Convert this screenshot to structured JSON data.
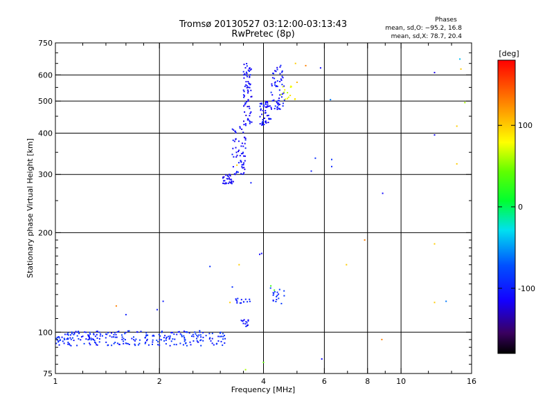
{
  "chart_data": {
    "type": "scatter",
    "title": "Tromsø 20130527 03:12:00-03:13:43",
    "subtitle": "RwPretec (8p)",
    "xlabel": "Frequency [MHz]",
    "ylabel": "Stationary phase Virtual Height [km]",
    "x_scale": "log",
    "y_scale": "log",
    "xlim": [
      1,
      16
    ],
    "ylim": [
      75,
      750
    ],
    "x_ticks": [
      1,
      2,
      4,
      6,
      8,
      10,
      16
    ],
    "x_tick_labels": [
      "1",
      "2",
      "4",
      "6",
      "8",
      "10",
      "16"
    ],
    "x_gridlines": [
      2,
      4,
      6,
      8,
      10
    ],
    "y_ticks": [
      75,
      100,
      200,
      300,
      400,
      500,
      600,
      750
    ],
    "y_tick_labels": [
      "75",
      "100",
      "200",
      "300",
      "400",
      "500",
      "600",
      "750"
    ],
    "y_gridlines": [
      100,
      200,
      300,
      400,
      500,
      600
    ],
    "grid": true,
    "stats_box": {
      "title": "Phases",
      "line_o": "mean, sd,O: −95.2, 16.8",
      "line_x": "mean, sd,X: 78.7, 20.4"
    },
    "colorbar": {
      "label": "[deg]",
      "range": [
        -180,
        180
      ],
      "ticks": [
        100,
        0,
        -100
      ],
      "tick_labels": [
        "100",
        "0",
        "-100"
      ],
      "palette": "rainbow"
    },
    "groups": [
      {
        "x": [
          1.0,
          3.1
        ],
        "y": [
          91,
          101
        ],
        "count": 260,
        "phase": [
          -110,
          -80
        ]
      },
      {
        "x": [
          3.45,
          3.62
        ],
        "y": [
          104,
          109
        ],
        "count": 14,
        "phase": [
          -120,
          -90
        ]
      },
      {
        "x": [
          3.05,
          3.28
        ],
        "y": [
          280,
          300
        ],
        "count": 30,
        "phase": [
          -125,
          -95
        ]
      },
      {
        "x": [
          3.25,
          3.55
        ],
        "y": [
          300,
          420
        ],
        "count": 60,
        "phase": [
          -125,
          -95
        ]
      },
      {
        "x": [
          3.5,
          3.7
        ],
        "y": [
          420,
          650
        ],
        "count": 70,
        "phase": [
          -125,
          -95
        ]
      },
      {
        "x": [
          3.9,
          4.2
        ],
        "y": [
          420,
          500
        ],
        "count": 50,
        "phase": [
          -120,
          -90
        ]
      },
      {
        "x": [
          4.2,
          4.6
        ],
        "y": [
          470,
          650
        ],
        "count": 60,
        "phase": [
          -120,
          -90
        ]
      },
      {
        "x": [
          4.5,
          4.95
        ],
        "y": [
          500,
          560
        ],
        "count": 14,
        "phase": [
          60,
          100
        ]
      },
      {
        "x": [
          3.3,
          3.7
        ],
        "y": [
          122,
          127
        ],
        "count": 14,
        "phase": [
          -115,
          -90
        ]
      },
      {
        "x": [
          3.95,
          4.6
        ],
        "y": [
          122,
          136
        ],
        "count": 18,
        "phase": [
          -110,
          -80
        ]
      }
    ],
    "isolated_points": [
      {
        "x": 3.9,
        "y": 172,
        "phase": -110
      },
      {
        "x": 3.95,
        "y": 173,
        "phase": -110
      },
      {
        "x": 3.68,
        "y": 283,
        "phase": -100
      },
      {
        "x": 5.65,
        "y": 336,
        "phase": -90
      },
      {
        "x": 5.5,
        "y": 307,
        "phase": -100
      },
      {
        "x": 6.3,
        "y": 333,
        "phase": -90
      },
      {
        "x": 6.3,
        "y": 317,
        "phase": -95
      },
      {
        "x": 5.85,
        "y": 630,
        "phase": -110
      },
      {
        "x": 6.25,
        "y": 505,
        "phase": -60
      },
      {
        "x": 8.85,
        "y": 263,
        "phase": -110
      },
      {
        "x": 12.5,
        "y": 610,
        "phase": -120
      },
      {
        "x": 12.5,
        "y": 395,
        "phase": -110
      },
      {
        "x": 12.5,
        "y": 185,
        "phase": 100
      },
      {
        "x": 12.5,
        "y": 123,
        "phase": 100
      },
      {
        "x": 13.5,
        "y": 124,
        "phase": -60
      },
      {
        "x": 14.8,
        "y": 670,
        "phase": -40
      },
      {
        "x": 14.9,
        "y": 625,
        "phase": 100
      },
      {
        "x": 14.5,
        "y": 420,
        "phase": 100
      },
      {
        "x": 14.5,
        "y": 323,
        "phase": 100
      },
      {
        "x": 15.3,
        "y": 495,
        "phase": 60
      },
      {
        "x": 7.85,
        "y": 190,
        "phase": 130
      },
      {
        "x": 6.95,
        "y": 160,
        "phase": 100
      },
      {
        "x": 8.8,
        "y": 95,
        "phase": 130
      },
      {
        "x": 5.9,
        "y": 83,
        "phase": -110
      },
      {
        "x": 4.0,
        "y": 81,
        "phase": 40
      },
      {
        "x": 3.55,
        "y": 77,
        "phase": 60
      },
      {
        "x": 2.8,
        "y": 158,
        "phase": -90
      },
      {
        "x": 2.05,
        "y": 124,
        "phase": -100
      },
      {
        "x": 1.97,
        "y": 117,
        "phase": -100
      },
      {
        "x": 1.6,
        "y": 113,
        "phase": -100
      },
      {
        "x": 1.5,
        "y": 120,
        "phase": 130
      },
      {
        "x": 3.25,
        "y": 137,
        "phase": -90
      },
      {
        "x": 3.2,
        "y": 123,
        "phase": 100
      },
      {
        "x": 3.4,
        "y": 160,
        "phase": 100
      },
      {
        "x": 4.2,
        "y": 138,
        "phase": 30
      },
      {
        "x": 4.3,
        "y": 134,
        "phase": 30
      },
      {
        "x": 4.95,
        "y": 650,
        "phase": 100
      },
      {
        "x": 5.3,
        "y": 640,
        "phase": 130
      },
      {
        "x": 5.0,
        "y": 570,
        "phase": 110
      },
      {
        "x": 3.35,
        "y": 320,
        "phase": 100
      }
    ]
  }
}
